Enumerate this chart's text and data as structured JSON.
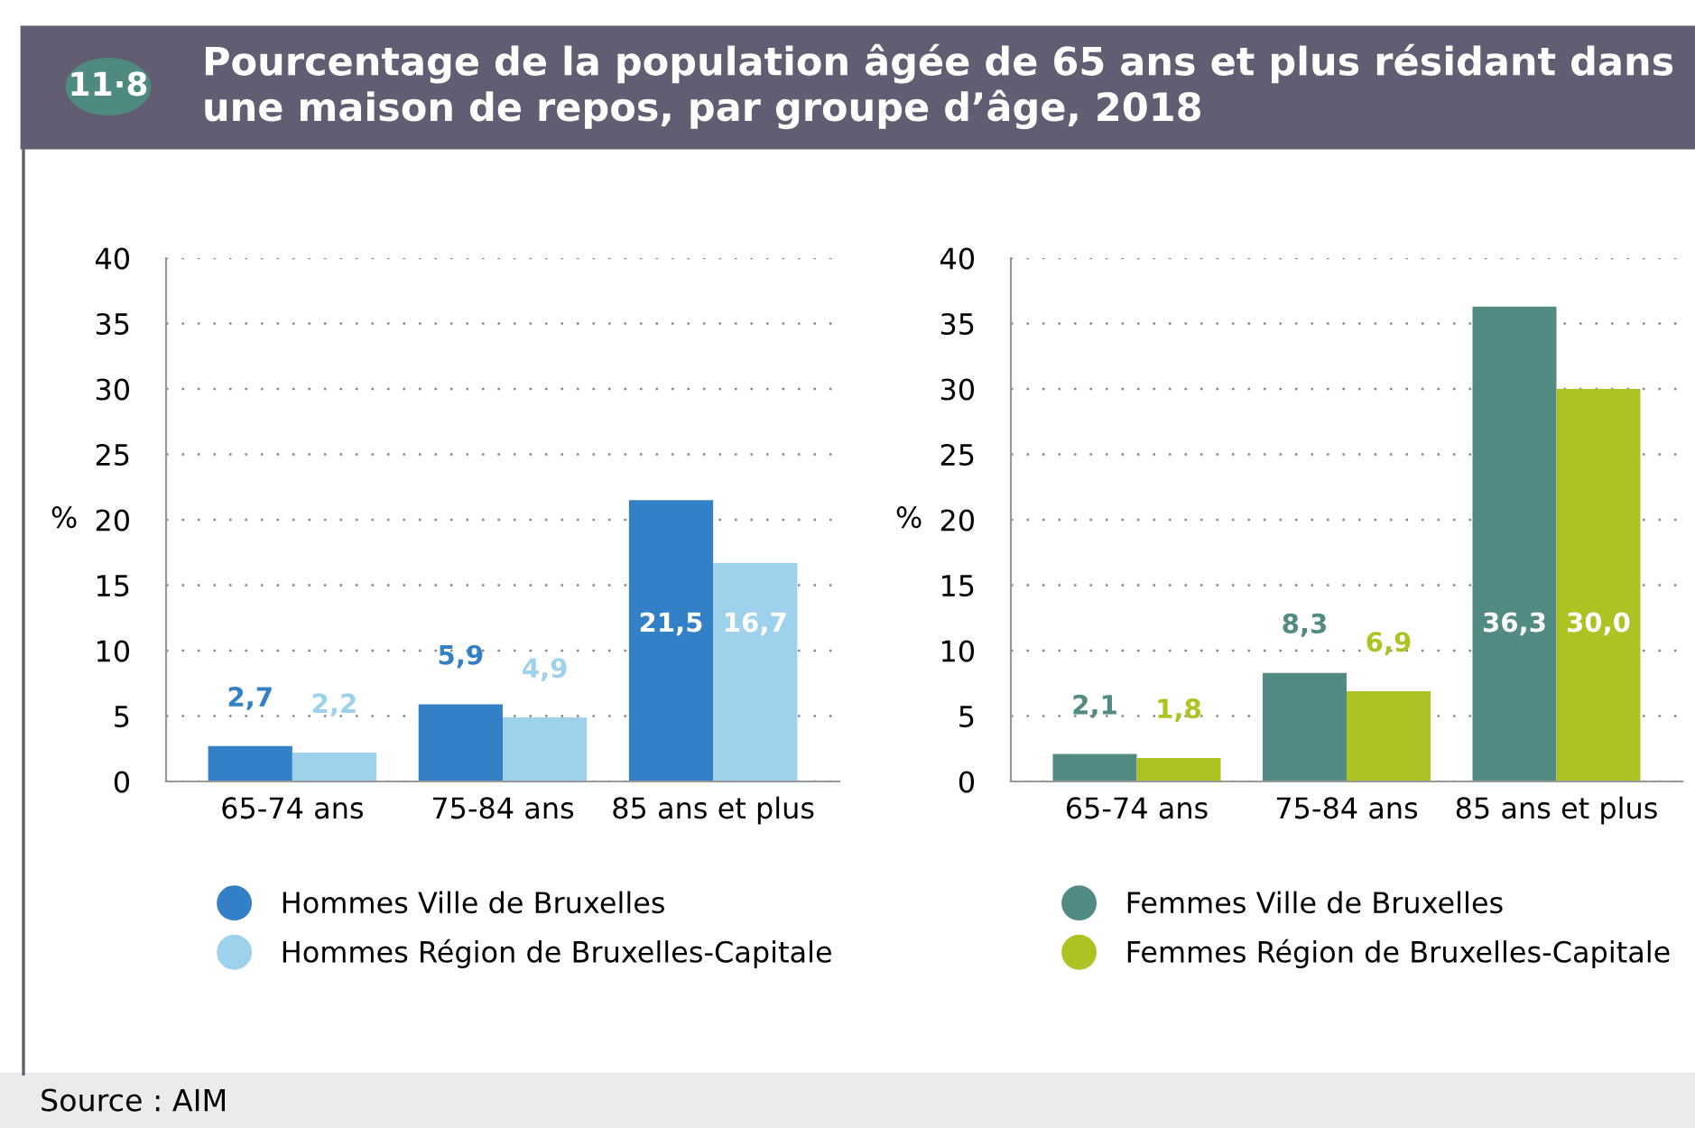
{
  "chart_data": [
    {
      "type": "bar",
      "title": "Pourcentage de la population âgée de 65 ans et plus résidant dans une maison de repos, par groupe d’âge, 2018",
      "annotations": [
        "11·8",
        "Source : AIM"
      ],
      "ylabel": "%",
      "categories": [
        "65-74 ans",
        "75-84 ans",
        "85 ans et plus"
      ],
      "ylim": [
        0,
        40
      ],
      "yticks": [
        0,
        5,
        10,
        15,
        20,
        25,
        30,
        35,
        40
      ],
      "grid": "y",
      "legend": "bottom",
      "series": [
        {
          "name": "Hommes Ville de Bruxelles",
          "color": "#3480c6",
          "values": [
            2.7,
            5.9,
            21.5
          ],
          "value_labels": [
            "2,7",
            "5,9",
            "21,5"
          ]
        },
        {
          "name": "Hommes Région de Bruxelles-Capitale",
          "color": "#9dd1ec",
          "values": [
            2.2,
            4.9,
            16.7
          ],
          "value_labels": [
            "2,2",
            "4,9",
            "16,7"
          ]
        }
      ]
    },
    {
      "type": "bar",
      "ylabel": "%",
      "categories": [
        "65-74 ans",
        "75-84 ans",
        "85 ans et plus"
      ],
      "ylim": [
        0,
        40
      ],
      "yticks": [
        0,
        5,
        10,
        15,
        20,
        25,
        30,
        35,
        40
      ],
      "grid": "y",
      "legend": "bottom",
      "series": [
        {
          "name": "Femmes Ville de Bruxelles",
          "color": "#528b84",
          "values": [
            2.1,
            8.3,
            36.3
          ],
          "value_labels": [
            "2,1",
            "8,3",
            "36,3"
          ]
        },
        {
          "name": "Femmes Région de Bruxelles-Capitale",
          "color": "#adc323",
          "values": [
            1.8,
            6.9,
            30.0
          ],
          "value_labels": [
            "1,8",
            "6,9",
            "30,0"
          ]
        }
      ]
    }
  ]
}
